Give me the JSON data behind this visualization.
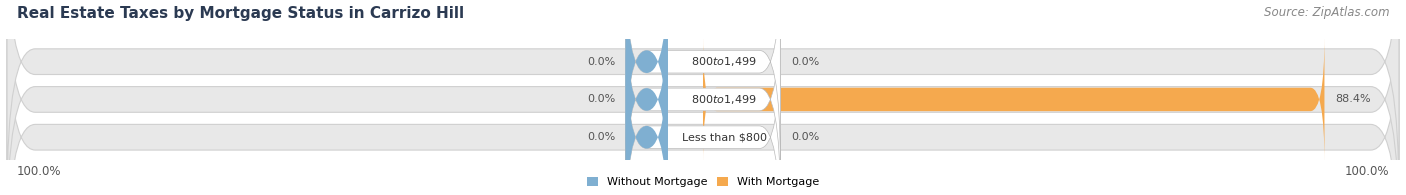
{
  "title": "Real Estate Taxes by Mortgage Status in Carrizo Hill",
  "source": "Source: ZipAtlas.com",
  "rows": [
    {
      "label": "Less than $800",
      "without_mortgage": 0.0,
      "with_mortgage": 0.0
    },
    {
      "label": "$800 to $1,499",
      "without_mortgage": 0.0,
      "with_mortgage": 88.4
    },
    {
      "label": "$800 to $1,499",
      "without_mortgage": 0.0,
      "with_mortgage": 0.0
    }
  ],
  "color_without": "#7fafd1",
  "color_with": "#f5a94e",
  "bg_bar": "#e8e8e8",
  "bg_bar_edge": "#d0d0d0",
  "left_label": "100.0%",
  "right_label": "100.0%",
  "legend_without": "Without Mortgage",
  "legend_with": "With Mortgage",
  "title_fontsize": 11,
  "source_fontsize": 8.5,
  "bar_label_fontsize": 8,
  "pct_fontsize": 8,
  "tick_fontsize": 8.5
}
